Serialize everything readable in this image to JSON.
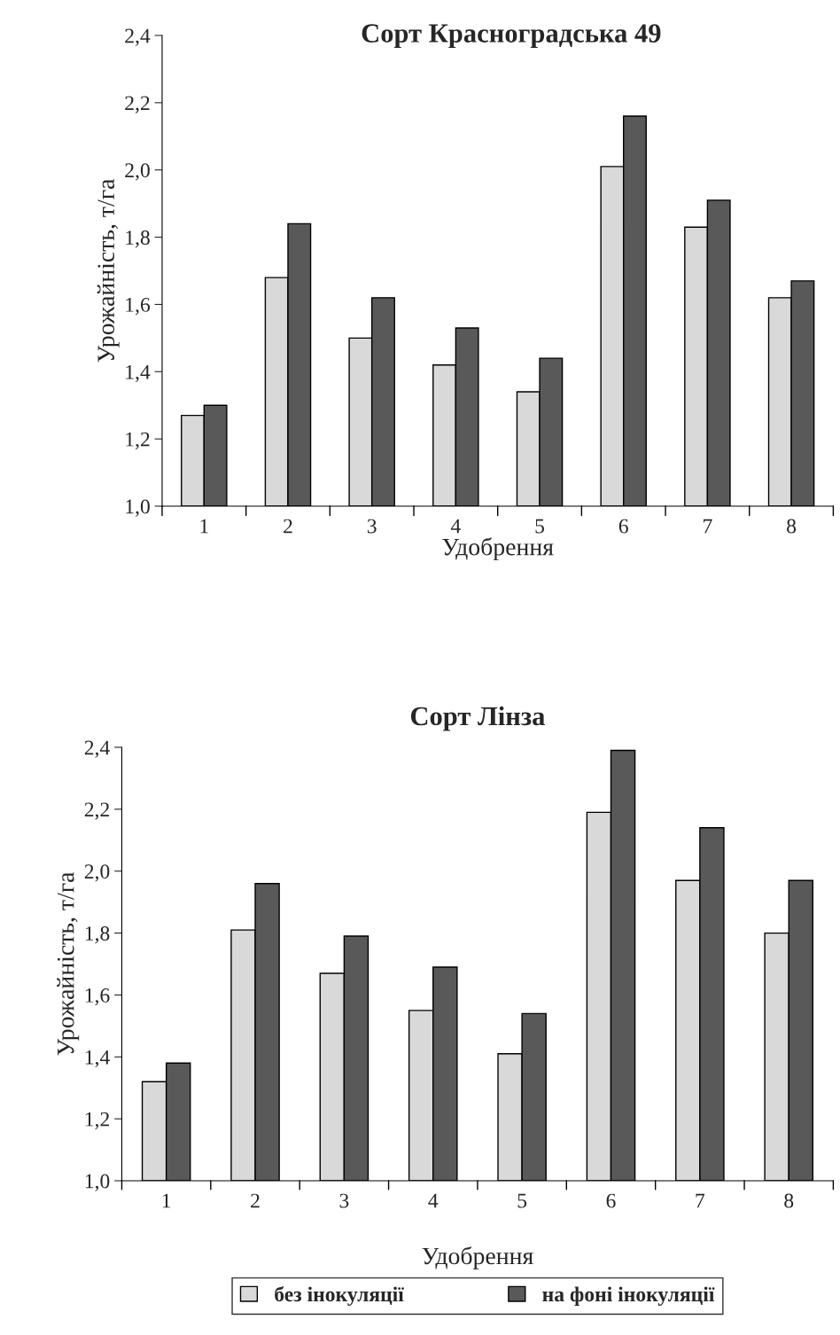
{
  "chart_data": [
    {
      "type": "bar",
      "title": "Сорт Красноградська 49",
      "xlabel": "Удобрення",
      "ylabel": "Урожайність, т/га",
      "categories": [
        "1",
        "2",
        "3",
        "4",
        "5",
        "6",
        "7",
        "8"
      ],
      "ylim": [
        1.0,
        2.4
      ],
      "yticks": [
        {
          "value": 1.0,
          "label": "1,0"
        },
        {
          "value": 1.2,
          "label": "1,2"
        },
        {
          "value": 1.4,
          "label": "1,4"
        },
        {
          "value": 1.6,
          "label": "1,6"
        },
        {
          "value": 1.8,
          "label": "1,8"
        },
        {
          "value": 2.0,
          "label": "2,0"
        },
        {
          "value": 2.2,
          "label": "2,2"
        },
        {
          "value": 2.4,
          "label": "2,4"
        }
      ],
      "grid": false,
      "legend": false,
      "series": [
        {
          "color": "#d9d9d9",
          "values": [
            1.27,
            1.68,
            1.5,
            1.42,
            1.34,
            2.01,
            1.83,
            1.62
          ]
        },
        {
          "color": "#595959",
          "values": [
            1.3,
            1.84,
            1.62,
            1.53,
            1.44,
            2.16,
            1.91,
            1.67
          ]
        }
      ]
    },
    {
      "type": "bar",
      "title": "Сорт Лінза",
      "xlabel": "Удобрення",
      "ylabel": "Урожайність, т/га",
      "categories": [
        "1",
        "2",
        "3",
        "4",
        "5",
        "6",
        "7",
        "8"
      ],
      "ylim": [
        1.0,
        2.4
      ],
      "yticks": [
        {
          "value": 1.0,
          "label": "1,0"
        },
        {
          "value": 1.2,
          "label": "1,2"
        },
        {
          "value": 1.4,
          "label": "1,4"
        },
        {
          "value": 1.6,
          "label": "1,6"
        },
        {
          "value": 1.8,
          "label": "1,8"
        },
        {
          "value": 2.0,
          "label": "2,0"
        },
        {
          "value": 2.2,
          "label": "2,2"
        },
        {
          "value": 2.4,
          "label": "2,4"
        }
      ],
      "grid": false,
      "legend": "bottom",
      "series": [
        {
          "name": "без інокуляції",
          "color": "#d9d9d9",
          "values": [
            1.32,
            1.81,
            1.67,
            1.55,
            1.41,
            2.19,
            1.97,
            1.8
          ]
        },
        {
          "name": "на фоні інокуляції",
          "color": "#595959",
          "values": [
            1.38,
            1.96,
            1.79,
            1.69,
            1.54,
            2.39,
            2.14,
            1.97
          ]
        }
      ]
    }
  ]
}
